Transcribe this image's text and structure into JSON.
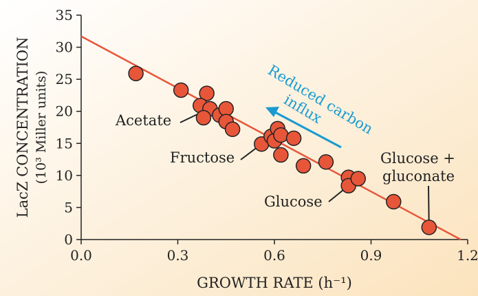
{
  "chart_data": {
    "type": "scatter",
    "xlabel": "GROWTH RATE (h⁻¹)",
    "ylabel_line1": "LacZ CONCENTRATION",
    "ylabel_line2": "(10³ Miller units)",
    "xlim": [
      0,
      1.2
    ],
    "ylim": [
      0,
      35
    ],
    "xticks": [
      0.0,
      0.3,
      0.6,
      0.9,
      1.2
    ],
    "xtick_labels": [
      "0.0",
      "0.3",
      "0.6",
      "0.9",
      "1.2"
    ],
    "yticks": [
      0,
      5,
      10,
      15,
      20,
      25,
      30,
      35
    ],
    "ytick_labels": [
      "0",
      "5",
      "10",
      "15",
      "20",
      "25",
      "30",
      "35"
    ],
    "grid": false,
    "points": [
      [
        0.17,
        25.9
      ],
      [
        0.31,
        23.3
      ],
      [
        0.39,
        22.8
      ],
      [
        0.37,
        20.9
      ],
      [
        0.4,
        20.4
      ],
      [
        0.38,
        19.0
      ],
      [
        0.43,
        19.4
      ],
      [
        0.45,
        20.4
      ],
      [
        0.45,
        18.4
      ],
      [
        0.47,
        17.2
      ],
      [
        0.56,
        14.9
      ],
      [
        0.59,
        16.1
      ],
      [
        0.6,
        15.4
      ],
      [
        0.61,
        17.3
      ],
      [
        0.62,
        16.3
      ],
      [
        0.66,
        15.8
      ],
      [
        0.62,
        13.2
      ],
      [
        0.69,
        11.5
      ],
      [
        0.76,
        12.1
      ],
      [
        0.83,
        9.7
      ],
      [
        0.83,
        8.4
      ],
      [
        0.86,
        9.5
      ],
      [
        0.97,
        5.9
      ],
      [
        1.08,
        1.9
      ]
    ],
    "fit_line": {
      "intercept": 31.7,
      "slope": -26.9
    },
    "annotations": [
      {
        "text": "Acetate",
        "x": 0.38,
        "y": 20.0
      },
      {
        "text": "Fructose",
        "x": 0.56,
        "y": 14.9
      },
      {
        "text": "Glucose",
        "x": 0.83,
        "y": 8.4
      },
      {
        "text_line1": "Glucose +",
        "text_line2": "gluconate",
        "x": 1.08,
        "y": 1.9
      }
    ],
    "arrow_label_line1": "Reduced carbon",
    "arrow_label_line2": "influx",
    "colors": {
      "point": "#e8563a",
      "line": "#e8563a",
      "arrow": "#1a9bd0",
      "bg_start": "#ffffff",
      "bg_end": "#fbe3bd"
    }
  }
}
